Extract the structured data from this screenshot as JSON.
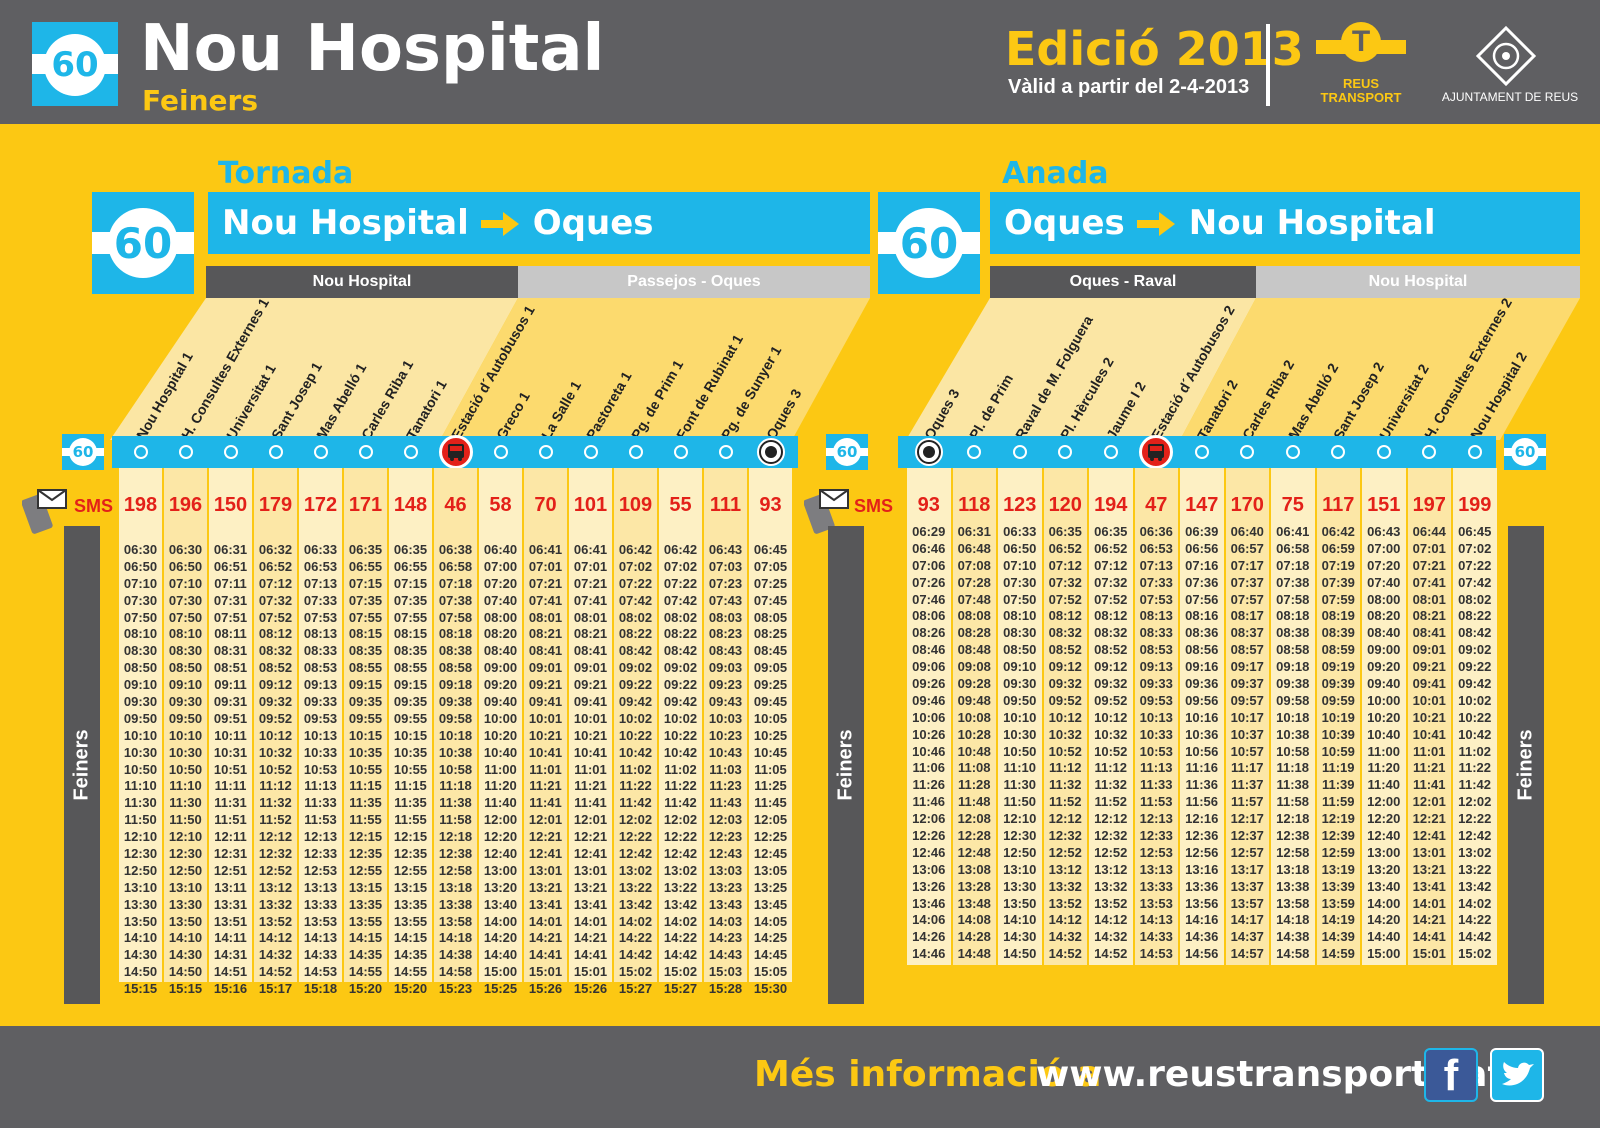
{
  "header": {
    "line": "60",
    "title": "Nou Hospital",
    "subtitle": "Feiners",
    "edition": "Edició 2013",
    "valid": "Vàlid a partir del 2-4-2013",
    "company_line1": "REUS",
    "company_line2": "TRANSPORT",
    "council": "AJUNTAMENT DE REUS"
  },
  "left": {
    "direction": "Tornada",
    "from": "Nou Hospital",
    "to": "Oques",
    "zone1": "Nou Hospital",
    "zone2": "Passejos - Oques",
    "sms": "SMS",
    "side": "Feiners",
    "stops": [
      "Nou Hospital 1",
      "H. Consultes Externes 1",
      "Universitat 1",
      "Sant Josep 1",
      "Mas Abelló 1",
      "Carles Riba 1",
      "Tanatori 1",
      "Estació d´Autobusos 1",
      "Greco 1",
      "La Salle 1",
      "Pastoreta 1",
      "Pg. de Prim 1",
      "Font de Rubinat 1",
      "Pg. de Sunyer 1",
      "Oques 3"
    ],
    "codes": [
      "198",
      "196",
      "150",
      "179",
      "172",
      "171",
      "148",
      "46",
      "58",
      "70",
      "101",
      "109",
      "55",
      "111",
      "93"
    ],
    "times": [
      [
        "06:30",
        "06:50",
        "07:10",
        "07:30",
        "07:50",
        "08:10",
        "08:30",
        "08:50",
        "09:10",
        "09:30",
        "09:50",
        "10:10",
        "10:30",
        "10:50",
        "11:10",
        "11:30",
        "11:50",
        "12:10",
        "12:30",
        "12:50",
        "13:10",
        "13:30",
        "13:50",
        "14:10",
        "14:30",
        "14:50",
        "15:15"
      ],
      [
        "06:30",
        "06:50",
        "07:10",
        "07:30",
        "07:50",
        "08:10",
        "08:30",
        "08:50",
        "09:10",
        "09:30",
        "09:50",
        "10:10",
        "10:30",
        "10:50",
        "11:10",
        "11:30",
        "11:50",
        "12:10",
        "12:30",
        "12:50",
        "13:10",
        "13:30",
        "13:50",
        "14:10",
        "14:30",
        "14:50",
        "15:15"
      ],
      [
        "06:31",
        "06:51",
        "07:11",
        "07:31",
        "07:51",
        "08:11",
        "08:31",
        "08:51",
        "09:11",
        "09:31",
        "09:51",
        "10:11",
        "10:31",
        "10:51",
        "11:11",
        "11:31",
        "11:51",
        "12:11",
        "12:31",
        "12:51",
        "13:11",
        "13:31",
        "13:51",
        "14:11",
        "14:31",
        "14:51",
        "15:16"
      ],
      [
        "06:32",
        "06:52",
        "07:12",
        "07:32",
        "07:52",
        "08:12",
        "08:32",
        "08:52",
        "09:12",
        "09:32",
        "09:52",
        "10:12",
        "10:32",
        "10:52",
        "11:12",
        "11:32",
        "11:52",
        "12:12",
        "12:32",
        "12:52",
        "13:12",
        "13:32",
        "13:52",
        "14:12",
        "14:32",
        "14:52",
        "15:17"
      ],
      [
        "06:33",
        "06:53",
        "07:13",
        "07:33",
        "07:53",
        "08:13",
        "08:33",
        "08:53",
        "09:13",
        "09:33",
        "09:53",
        "10:13",
        "10:33",
        "10:53",
        "11:13",
        "11:33",
        "11:53",
        "12:13",
        "12:33",
        "12:53",
        "13:13",
        "13:33",
        "13:53",
        "14:13",
        "14:33",
        "14:53",
        "15:18"
      ],
      [
        "06:35",
        "06:55",
        "07:15",
        "07:35",
        "07:55",
        "08:15",
        "08:35",
        "08:55",
        "09:15",
        "09:35",
        "09:55",
        "10:15",
        "10:35",
        "10:55",
        "11:15",
        "11:35",
        "11:55",
        "12:15",
        "12:35",
        "12:55",
        "13:15",
        "13:35",
        "13:55",
        "14:15",
        "14:35",
        "14:55",
        "15:20"
      ],
      [
        "06:35",
        "06:55",
        "07:15",
        "07:35",
        "07:55",
        "08:15",
        "08:35",
        "08:55",
        "09:15",
        "09:35",
        "09:55",
        "10:15",
        "10:35",
        "10:55",
        "11:15",
        "11:35",
        "11:55",
        "12:15",
        "12:35",
        "12:55",
        "13:15",
        "13:35",
        "13:55",
        "14:15",
        "14:35",
        "14:55",
        "15:20"
      ],
      [
        "06:38",
        "06:58",
        "07:18",
        "07:38",
        "07:58",
        "08:18",
        "08:38",
        "08:58",
        "09:18",
        "09:38",
        "09:58",
        "10:18",
        "10:38",
        "10:58",
        "11:18",
        "11:38",
        "11:58",
        "12:18",
        "12:38",
        "12:58",
        "13:18",
        "13:38",
        "13:58",
        "14:18",
        "14:38",
        "14:58",
        "15:23"
      ],
      [
        "06:40",
        "07:00",
        "07:20",
        "07:40",
        "08:00",
        "08:20",
        "08:40",
        "09:00",
        "09:20",
        "09:40",
        "10:00",
        "10:20",
        "10:40",
        "11:00",
        "11:20",
        "11:40",
        "12:00",
        "12:20",
        "12:40",
        "13:00",
        "13:20",
        "13:40",
        "14:00",
        "14:20",
        "14:40",
        "15:00",
        "15:25"
      ],
      [
        "06:41",
        "07:01",
        "07:21",
        "07:41",
        "08:01",
        "08:21",
        "08:41",
        "09:01",
        "09:21",
        "09:41",
        "10:01",
        "10:21",
        "10:41",
        "11:01",
        "11:21",
        "11:41",
        "12:01",
        "12:21",
        "12:41",
        "13:01",
        "13:21",
        "13:41",
        "14:01",
        "14:21",
        "14:41",
        "15:01",
        "15:26"
      ],
      [
        "06:41",
        "07:01",
        "07:21",
        "07:41",
        "08:01",
        "08:21",
        "08:41",
        "09:01",
        "09:21",
        "09:41",
        "10:01",
        "10:21",
        "10:41",
        "11:01",
        "11:21",
        "11:41",
        "12:01",
        "12:21",
        "12:41",
        "13:01",
        "13:21",
        "13:41",
        "14:01",
        "14:21",
        "14:41",
        "15:01",
        "15:26"
      ],
      [
        "06:42",
        "07:02",
        "07:22",
        "07:42",
        "08:02",
        "08:22",
        "08:42",
        "09:02",
        "09:22",
        "09:42",
        "10:02",
        "10:22",
        "10:42",
        "11:02",
        "11:22",
        "11:42",
        "12:02",
        "12:22",
        "12:42",
        "13:02",
        "13:22",
        "13:42",
        "14:02",
        "14:22",
        "14:42",
        "15:02",
        "15:27"
      ],
      [
        "06:42",
        "07:02",
        "07:22",
        "07:42",
        "08:02",
        "08:22",
        "08:42",
        "09:02",
        "09:22",
        "09:42",
        "10:02",
        "10:22",
        "10:42",
        "11:02",
        "11:22",
        "11:42",
        "12:02",
        "12:22",
        "12:42",
        "13:02",
        "13:22",
        "13:42",
        "14:02",
        "14:22",
        "14:42",
        "15:02",
        "15:27"
      ],
      [
        "06:43",
        "07:03",
        "07:23",
        "07:43",
        "08:03",
        "08:23",
        "08:43",
        "09:03",
        "09:23",
        "09:43",
        "10:03",
        "10:23",
        "10:43",
        "11:03",
        "11:23",
        "11:43",
        "12:03",
        "12:23",
        "12:43",
        "13:03",
        "13:23",
        "13:43",
        "14:03",
        "14:23",
        "14:43",
        "15:03",
        "15:28"
      ],
      [
        "06:45",
        "07:05",
        "07:25",
        "07:45",
        "08:05",
        "08:25",
        "08:45",
        "09:05",
        "09:25",
        "09:45",
        "10:05",
        "10:25",
        "10:45",
        "11:05",
        "11:25",
        "11:45",
        "12:05",
        "12:25",
        "12:45",
        "13:05",
        "13:25",
        "13:45",
        "14:05",
        "14:25",
        "14:45",
        "15:05",
        "15:30"
      ]
    ]
  },
  "right": {
    "direction": "Anada",
    "from": "Oques",
    "to": "Nou Hospital",
    "zone1": "Oques - Raval",
    "zone2": "Nou Hospital",
    "sms": "SMS",
    "side": "Feiners",
    "stops": [
      "Oques 3",
      "Pl. de Prim",
      "Raval de M. Folguera",
      "Pl. Hèrcules 2",
      "Jaume I 2",
      "Estació d´Autobusos 2",
      "Tanatori 2",
      "Carles Riba 2",
      "Mas Abelló 2",
      "Sant Josep 2",
      "Universitat 2",
      "H. Consultes Externes 2",
      "Nou Hospital 2"
    ],
    "codes": [
      "93",
      "118",
      "123",
      "120",
      "194",
      "47",
      "147",
      "170",
      "75",
      "117",
      "151",
      "197",
      "199"
    ],
    "times": [
      [
        "06:29",
        "06:46",
        "07:06",
        "07:26",
        "07:46",
        "08:06",
        "08:26",
        "08:46",
        "09:06",
        "09:26",
        "09:46",
        "10:06",
        "10:26",
        "10:46",
        "11:06",
        "11:26",
        "11:46",
        "12:06",
        "12:26",
        "12:46",
        "13:06",
        "13:26",
        "13:46",
        "14:06",
        "14:26",
        "14:46"
      ],
      [
        "06:31",
        "06:48",
        "07:08",
        "07:28",
        "07:48",
        "08:08",
        "08:28",
        "08:48",
        "09:08",
        "09:28",
        "09:48",
        "10:08",
        "10:28",
        "10:48",
        "11:08",
        "11:28",
        "11:48",
        "12:08",
        "12:28",
        "12:48",
        "13:08",
        "13:28",
        "13:48",
        "14:08",
        "14:28",
        "14:48"
      ],
      [
        "06:33",
        "06:50",
        "07:10",
        "07:30",
        "07:50",
        "08:10",
        "08:30",
        "08:50",
        "09:10",
        "09:30",
        "09:50",
        "10:10",
        "10:30",
        "10:50",
        "11:10",
        "11:30",
        "11:50",
        "12:10",
        "12:30",
        "12:50",
        "13:10",
        "13:30",
        "13:50",
        "14:10",
        "14:30",
        "14:50"
      ],
      [
        "06:35",
        "06:52",
        "07:12",
        "07:32",
        "07:52",
        "08:12",
        "08:32",
        "08:52",
        "09:12",
        "09:32",
        "09:52",
        "10:12",
        "10:32",
        "10:52",
        "11:12",
        "11:32",
        "11:52",
        "12:12",
        "12:32",
        "12:52",
        "13:12",
        "13:32",
        "13:52",
        "14:12",
        "14:32",
        "14:52"
      ],
      [
        "06:35",
        "06:52",
        "07:12",
        "07:32",
        "07:52",
        "08:12",
        "08:32",
        "08:52",
        "09:12",
        "09:32",
        "09:52",
        "10:12",
        "10:32",
        "10:52",
        "11:12",
        "11:32",
        "11:52",
        "12:12",
        "12:32",
        "12:52",
        "13:12",
        "13:32",
        "13:52",
        "14:12",
        "14:32",
        "14:52"
      ],
      [
        "06:36",
        "06:53",
        "07:13",
        "07:33",
        "07:53",
        "08:13",
        "08:33",
        "08:53",
        "09:13",
        "09:33",
        "09:53",
        "10:13",
        "10:33",
        "10:53",
        "11:13",
        "11:33",
        "11:53",
        "12:13",
        "12:33",
        "12:53",
        "13:13",
        "13:33",
        "13:53",
        "14:13",
        "14:33",
        "14:53"
      ],
      [
        "06:39",
        "06:56",
        "07:16",
        "07:36",
        "07:56",
        "08:16",
        "08:36",
        "08:56",
        "09:16",
        "09:36",
        "09:56",
        "10:16",
        "10:36",
        "10:56",
        "11:16",
        "11:36",
        "11:56",
        "12:16",
        "12:36",
        "12:56",
        "13:16",
        "13:36",
        "13:56",
        "14:16",
        "14:36",
        "14:56"
      ],
      [
        "06:40",
        "06:57",
        "07:17",
        "07:37",
        "07:57",
        "08:17",
        "08:37",
        "08:57",
        "09:17",
        "09:37",
        "09:57",
        "10:17",
        "10:37",
        "10:57",
        "11:17",
        "11:37",
        "11:57",
        "12:17",
        "12:37",
        "12:57",
        "13:17",
        "13:37",
        "13:57",
        "14:17",
        "14:37",
        "14:57"
      ],
      [
        "06:41",
        "06:58",
        "07:18",
        "07:38",
        "07:58",
        "08:18",
        "08:38",
        "08:58",
        "09:18",
        "09:38",
        "09:58",
        "10:18",
        "10:38",
        "10:58",
        "11:18",
        "11:38",
        "11:58",
        "12:18",
        "12:38",
        "12:58",
        "13:18",
        "13:38",
        "13:58",
        "14:18",
        "14:38",
        "14:58"
      ],
      [
        "06:42",
        "06:59",
        "07:19",
        "07:39",
        "07:59",
        "08:19",
        "08:39",
        "08:59",
        "09:19",
        "09:39",
        "09:59",
        "10:19",
        "10:39",
        "10:59",
        "11:19",
        "11:39",
        "11:59",
        "12:19",
        "12:39",
        "12:59",
        "13:19",
        "13:39",
        "13:59",
        "14:19",
        "14:39",
        "14:59"
      ],
      [
        "06:43",
        "07:00",
        "07:20",
        "07:40",
        "08:00",
        "08:20",
        "08:40",
        "09:00",
        "09:20",
        "09:40",
        "10:00",
        "10:20",
        "10:40",
        "11:00",
        "11:20",
        "11:40",
        "12:00",
        "12:20",
        "12:40",
        "13:00",
        "13:20",
        "13:40",
        "14:00",
        "14:20",
        "14:40",
        "15:00"
      ],
      [
        "06:44",
        "07:01",
        "07:21",
        "07:41",
        "08:01",
        "08:21",
        "08:41",
        "09:01",
        "09:21",
        "09:41",
        "10:01",
        "10:21",
        "10:41",
        "11:01",
        "11:21",
        "11:41",
        "12:01",
        "12:21",
        "12:41",
        "13:01",
        "13:21",
        "13:41",
        "14:01",
        "14:21",
        "14:41",
        "15:01"
      ],
      [
        "06:45",
        "07:02",
        "07:22",
        "07:42",
        "08:02",
        "08:22",
        "08:42",
        "09:02",
        "09:22",
        "09:42",
        "10:02",
        "10:22",
        "10:42",
        "11:02",
        "11:22",
        "11:42",
        "12:02",
        "12:22",
        "12:42",
        "13:02",
        "13:22",
        "13:42",
        "14:02",
        "14:22",
        "14:42",
        "15:02"
      ]
    ]
  },
  "footer": {
    "more": "Més informació a",
    "url": "www.reustransport.cat",
    "facebook": "f"
  },
  "icons": [
    "facebook-icon",
    "twitter-icon",
    "sms-phone-icon",
    "bus-station-icon",
    "terminus-icon",
    "arrow-right-icon"
  ],
  "colors": {
    "background": "#fcc813",
    "header": "#5f5f62",
    "accent_blue": "#1eb6e8",
    "code_red": "#e32119",
    "band_dark": "#575759"
  }
}
